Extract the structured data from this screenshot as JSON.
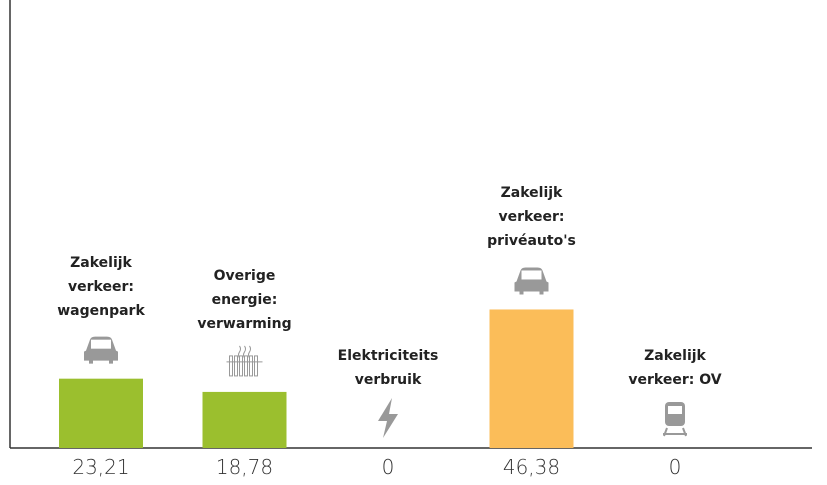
{
  "chart_data": {
    "type": "bar",
    "categories": [
      "Zakelijk verkeer: wagenpark",
      "Overige energie: verwarming",
      "Elektriciteits verbruik",
      "Zakelijk verkeer: privéauto's",
      "Zakelijk verkeer: OV"
    ],
    "values": [
      23.21,
      18.78,
      0,
      46.38,
      0
    ],
    "value_labels": [
      "23,21",
      "18,78",
      "0",
      "46,38",
      "0"
    ],
    "colors": [
      "#9bbf2e",
      "#9bbf2e",
      "#9bbf2e",
      "#fbbd59",
      "#9bbf2e"
    ],
    "ylim": [
      0,
      150
    ]
  }
}
